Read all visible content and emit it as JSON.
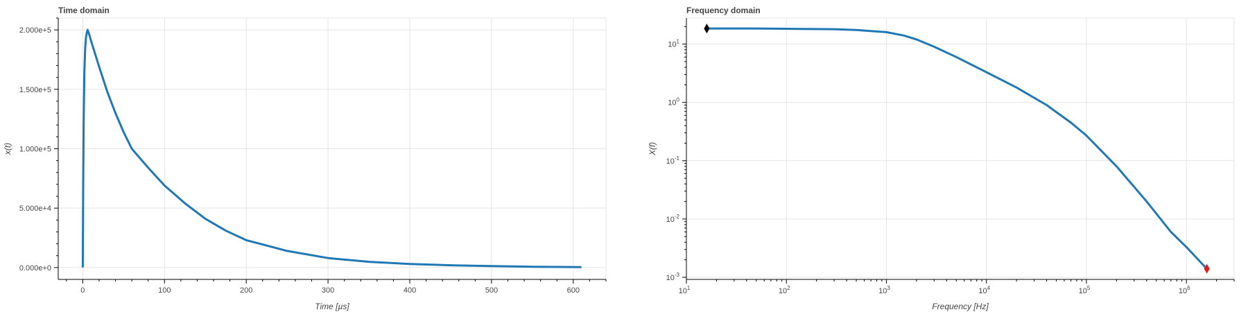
{
  "chart_data": [
    {
      "type": "line",
      "title": "Time domain",
      "xlabel": "Time [µs]",
      "ylabel": "x(t)",
      "xlim": [
        -30,
        640
      ],
      "ylim": [
        -10000,
        210000
      ],
      "x_ticks": [
        0,
        100,
        200,
        300,
        400,
        500,
        600
      ],
      "x_tick_labels": [
        "0",
        "100",
        "200",
        "300",
        "400",
        "500",
        "600"
      ],
      "y_ticks": [
        0,
        50000,
        100000,
        150000,
        200000
      ],
      "y_tick_labels": [
        "0.000e+0",
        "5.000e+4",
        "1.000e+5",
        "1.500e+5",
        "2.000e+5"
      ],
      "grid": true,
      "series": [
        {
          "color": "#1f77b4",
          "x": [
            0,
            0.5,
            1,
            2,
            3,
            4,
            5,
            6,
            8,
            10,
            15,
            20,
            30,
            40,
            50,
            60,
            80,
            100,
            125,
            150,
            175,
            200,
            250,
            300,
            350,
            400,
            450,
            500,
            550,
            610
          ],
          "y": [
            0,
            70000,
            120000,
            165000,
            185000,
            194000,
            198000,
            200000,
            196000,
            191000,
            180000,
            169000,
            148000,
            130000,
            114000,
            100000,
            84000,
            69000,
            54000,
            41000,
            31000,
            23000,
            14000,
            8000,
            4800,
            3000,
            1900,
            1200,
            700,
            300
          ]
        }
      ]
    },
    {
      "type": "line",
      "title": "Frequency domain",
      "xlabel": "Frequency [Hz]",
      "ylabel": "X(f)",
      "x_scale": "log",
      "y_scale": "log",
      "xlim": [
        10,
        3000000
      ],
      "ylim": [
        0.00092,
        28
      ],
      "x_tick_exponents": [
        1,
        2,
        3,
        4,
        5,
        6
      ],
      "y_tick_exponents": [
        -3,
        -2,
        -1,
        0,
        1
      ],
      "grid": true,
      "series": [
        {
          "color": "#1f77b4",
          "x": [
            16,
            50,
            100,
            300,
            500,
            1000,
            1500,
            2000,
            3000,
            5000,
            10000,
            20000,
            40000,
            70000,
            100000,
            200000,
            400000,
            700000,
            1000000,
            1600000
          ],
          "y": [
            18.5,
            18.5,
            18.3,
            18.0,
            17.5,
            16.0,
            14.0,
            12.0,
            9.0,
            6.0,
            3.3,
            1.8,
            0.9,
            0.45,
            0.27,
            0.08,
            0.02,
            0.006,
            0.0033,
            0.0014
          ]
        }
      ],
      "markers": [
        {
          "x": 16,
          "y": 18.5,
          "shape": "diamond",
          "color": "#000000"
        },
        {
          "x": 1600000,
          "y": 0.0014,
          "shape": "diamond",
          "color": "#e31a1c"
        }
      ]
    }
  ]
}
